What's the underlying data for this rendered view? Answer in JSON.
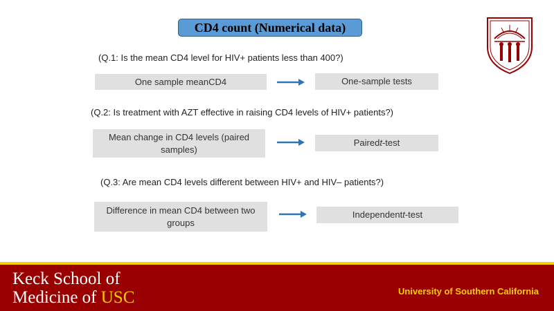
{
  "title": "CD4 count (Numerical data)",
  "questions": [
    {
      "question": "(Q.1: Is the mean CD4 level for HIV+ patients less than 400?)",
      "left_box": "One sample meanCD4",
      "right_box_pre": "One-sample tests",
      "right_box_italic": "",
      "right_box_post": ""
    },
    {
      "question": "(Q.2: Is treatment with AZT effective in raising CD4 levels of HIV+ patients?)",
      "left_box": "Mean change in CD4 levels (paired samples)",
      "right_box_pre": "Paired ",
      "right_box_italic": "t",
      "right_box_post": "-test"
    },
    {
      "question": "(Q.3: Are mean CD4 levels different between HIV+ and HIV– patients?)",
      "left_box": "Difference in mean CD4 between two groups",
      "right_box_pre": "Independent ",
      "right_box_italic": "t",
      "right_box_post": "-test"
    }
  ],
  "footer": {
    "school_line1": "Keck School of",
    "school_line2_pre": "Medicine of ",
    "school_line2_usc": "USC",
    "university": "University of Southern California"
  },
  "colors": {
    "title_fill": "#5b9bd5",
    "arrow": "#2e75b6",
    "footer_red": "#990000",
    "footer_gold": "#ffcc00"
  },
  "icons": [
    "usc-seal-icon",
    "arrow-right-icon"
  ]
}
